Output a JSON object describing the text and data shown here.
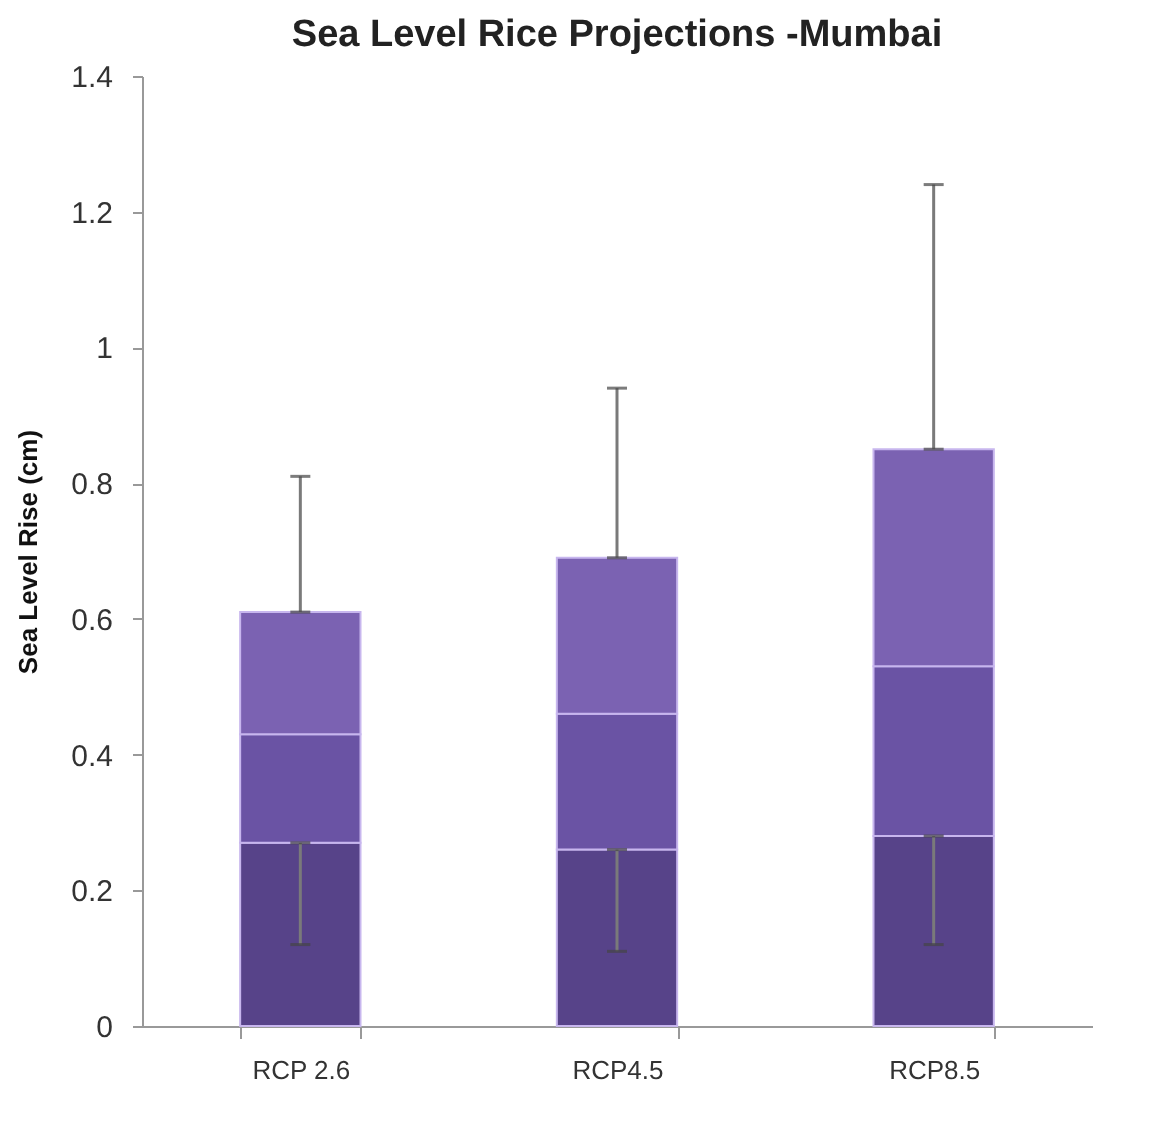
{
  "chart_data": {
    "type": "bar",
    "stacked": true,
    "title": "Sea Level Rice Projections -Mumbai",
    "ylabel": "Sea Level Rise (cm)",
    "categories": [
      "RCP 2.6",
      "RCP4.5",
      "RCP8.5"
    ],
    "series": [
      {
        "color": "#574389",
        "values": [
          0.27,
          0.26,
          0.28
        ],
        "errors": [
          [
            0.12,
            0.27
          ],
          [
            0.11,
            0.26
          ],
          [
            0.12,
            0.28
          ]
        ]
      },
      {
        "color": "#6a53a4",
        "values": [
          0.16,
          0.2,
          0.25
        ]
      },
      {
        "color": "#7b62b2",
        "values": [
          0.18,
          0.23,
          0.32
        ],
        "errors": [
          [
            0.61,
            0.81
          ],
          [
            0.69,
            0.94
          ],
          [
            0.85,
            1.24
          ]
        ]
      }
    ],
    "ylim": [
      0,
      1.4
    ],
    "yticks": [
      0,
      0.2,
      0.4,
      0.6,
      0.8,
      1,
      1.2,
      1.4
    ],
    "grid": false,
    "legend": false
  }
}
